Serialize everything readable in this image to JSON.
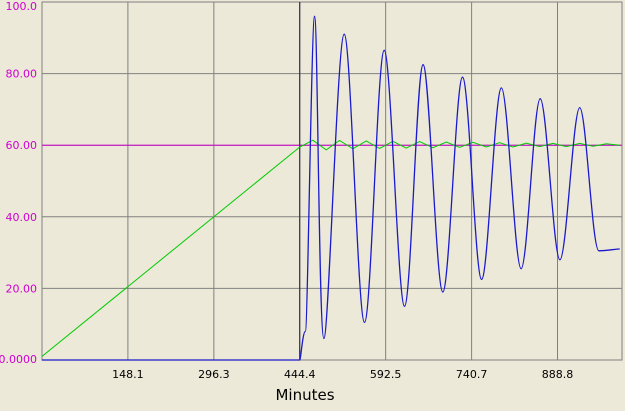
{
  "chart_data": {
    "type": "line",
    "title": "",
    "xlabel": "Minutes",
    "ylabel": "",
    "xlim": [
      0,
      1000
    ],
    "ylim": [
      0,
      100
    ],
    "grid": true,
    "legend": "none",
    "y_ticks": [
      {
        "value": 0,
        "label": "0.0000"
      },
      {
        "value": 20,
        "label": "20.00"
      },
      {
        "value": 40,
        "label": "40.00"
      },
      {
        "value": 60,
        "label": "60.00"
      },
      {
        "value": 80,
        "label": "80.00"
      },
      {
        "value": 100,
        "label": "100.0"
      }
    ],
    "x_ticks": [
      {
        "value": 148.1,
        "label": "148.1"
      },
      {
        "value": 296.3,
        "label": "296.3"
      },
      {
        "value": 444.4,
        "label": "444.4"
      },
      {
        "value": 592.5,
        "label": "592.5"
      },
      {
        "value": 740.7,
        "label": "740.7"
      },
      {
        "value": 888.8,
        "label": "888.8"
      }
    ],
    "reference_lines": [
      {
        "axis": "y",
        "value": 60,
        "color": "#d000d0"
      },
      {
        "axis": "x",
        "value": 444.4,
        "color": "#1a1a50"
      }
    ],
    "series": [
      {
        "color": "#00cc00",
        "x": [
          0,
          444.4,
          467,
          490,
          513,
          536,
          559,
          582,
          605,
          628,
          651,
          674,
          697,
          720,
          743,
          766,
          789,
          812,
          835,
          858,
          881,
          904,
          927,
          950,
          973,
          996
        ],
        "y": [
          1,
          59.5,
          61.4,
          58.7,
          61.3,
          59.0,
          61.2,
          59.1,
          61.1,
          59.2,
          61.0,
          59.3,
          60.9,
          59.4,
          60.8,
          59.5,
          60.7,
          59.5,
          60.6,
          59.6,
          60.5,
          59.6,
          60.5,
          59.7,
          60.4,
          60.0
        ]
      },
      {
        "color": "#1a1acc",
        "x": [
          0,
          444.4,
          454,
          470,
          486,
          521,
          556,
          590,
          625,
          657,
          691,
          725,
          758,
          792,
          826,
          859,
          893,
          927,
          960,
          996
        ],
        "y": [
          0,
          0,
          8,
          96,
          6,
          91,
          10.5,
          86.5,
          15,
          82.5,
          19,
          79,
          22.5,
          76,
          25.5,
          73,
          28,
          70.5,
          30.5,
          31
        ]
      }
    ]
  }
}
